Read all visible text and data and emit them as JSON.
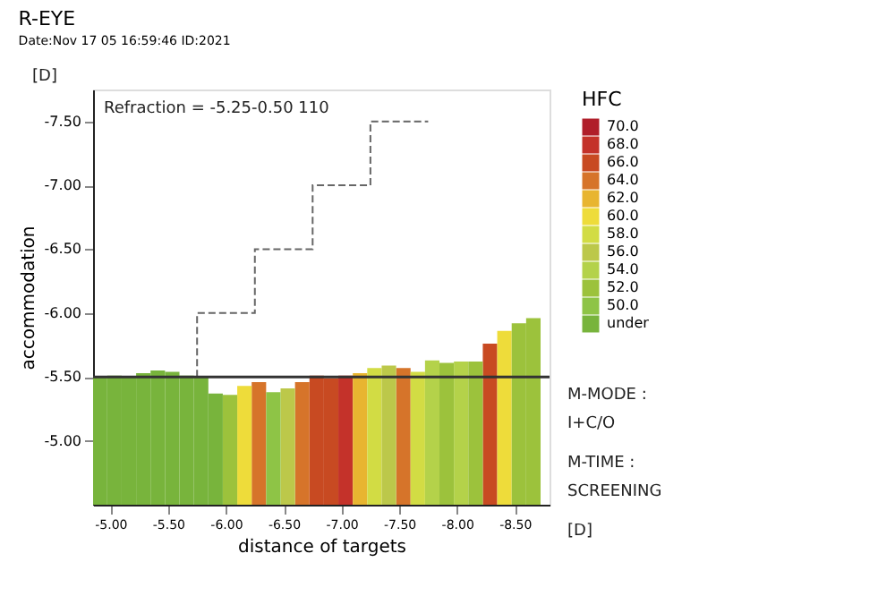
{
  "chart_data": {
    "type": "bar",
    "title": "R-EYE",
    "subtitle": "Date:Nov 17 05 16:59:46 ID:2021",
    "xlabel": "distance of targets",
    "ylabel": "accommodation",
    "legend_title": "HFC",
    "legend": "top right",
    "xlim": [
      -4.85,
      -8.8
    ],
    "ylim": [
      -4.5,
      -7.75
    ],
    "xticks": [
      {
        "value": -5.0,
        "label": "-5.00"
      },
      {
        "value": -5.5,
        "label": "-5.50"
      },
      {
        "value": -6.0,
        "label": "-6.00"
      },
      {
        "value": -6.5,
        "label": "-6.50"
      },
      {
        "value": -7.0,
        "label": "-7.00"
      },
      {
        "value": -7.5,
        "label": "-7.50"
      },
      {
        "value": -8.0,
        "label": "-8.00"
      },
      {
        "value": -8.5,
        "label": "-8.50"
      }
    ],
    "yticks": [
      {
        "value": -5.0,
        "label": "-5.00"
      },
      {
        "value": -5.5,
        "label": "-5.50"
      },
      {
        "value": -6.0,
        "label": "-6.00"
      },
      {
        "value": -6.5,
        "label": "-6.50"
      },
      {
        "value": -7.0,
        "label": "-7.00"
      },
      {
        "value": -7.5,
        "label": "-7.50"
      }
    ],
    "grid": false,
    "series": [
      {
        "name": "70.0",
        "color": "#b01e2a"
      },
      {
        "name": "68.0",
        "color": "#c4322a",
        "x": [
          -7.035
        ],
        "values": [
          -5.51
        ]
      },
      {
        "name": "66.0",
        "color": "#c84a22",
        "x": [
          -6.785,
          -6.91,
          -8.285
        ],
        "values": [
          -5.51,
          -5.49,
          -5.76
        ]
      },
      {
        "name": "64.0",
        "color": "#d6742a",
        "x": [
          -6.285,
          -6.66,
          -7.535
        ],
        "values": [
          -5.46,
          -5.46,
          -5.57
        ]
      },
      {
        "name": "62.0",
        "color": "#e8b530",
        "x": [
          -7.16
        ],
        "values": [
          -5.53
        ]
      },
      {
        "name": "60.0",
        "color": "#eedc3a",
        "x": [
          -6.16,
          -8.41
        ],
        "values": [
          -5.43,
          -5.86
        ]
      },
      {
        "name": "58.0",
        "color": "#d2dc44",
        "x": [
          -7.285,
          -7.66
        ],
        "values": [
          -5.57,
          -5.54
        ]
      },
      {
        "name": "56.0",
        "color": "#bcc84a",
        "x": [
          -6.535,
          -7.41
        ],
        "values": [
          -5.41,
          -5.59
        ]
      },
      {
        "name": "54.0",
        "color": "#b4d24a",
        "x": [
          -7.785,
          -8.035
        ],
        "values": [
          -5.63,
          -5.62
        ]
      },
      {
        "name": "52.0",
        "color": "#9cc23c",
        "x": [
          -6.035,
          -7.91,
          -8.16,
          -8.535,
          -8.66
        ],
        "values": [
          -5.36,
          -5.61,
          -5.62,
          -5.92,
          -5.96
        ]
      },
      {
        "name": "50.0",
        "color": "#8ec446",
        "x": [
          -6.41
        ],
        "values": [
          -5.38
        ]
      },
      {
        "name": "under",
        "color": "#78b43c",
        "x": [
          -4.91,
          -5.035,
          -5.16,
          -5.285,
          -5.41,
          -5.535,
          -5.66,
          -5.785,
          -5.91
        ],
        "values": [
          -5.5,
          -5.51,
          -5.5,
          -5.53,
          -5.55,
          -5.54,
          -5.51,
          -5.5,
          -5.37
        ]
      },
      {
        "type": "step",
        "color": "#666666",
        "line_style": "dashed",
        "x": [
          -5.75,
          -5.75,
          -6.25,
          -6.75,
          -7.25,
          -7.75
        ],
        "values": [
          -5.5,
          -6.0,
          -6.5,
          -7.0,
          -7.5,
          -7.5
        ]
      }
    ],
    "ref_lines": [
      {
        "axis": "y",
        "value": -5.5,
        "color": "#333333"
      }
    ],
    "annotations": [
      "Refraction = -5.25-0.50 110",
      "[D]",
      "[D]",
      "M-MODE :",
      "I+C/O",
      "M-TIME :",
      "SCREENING"
    ]
  }
}
